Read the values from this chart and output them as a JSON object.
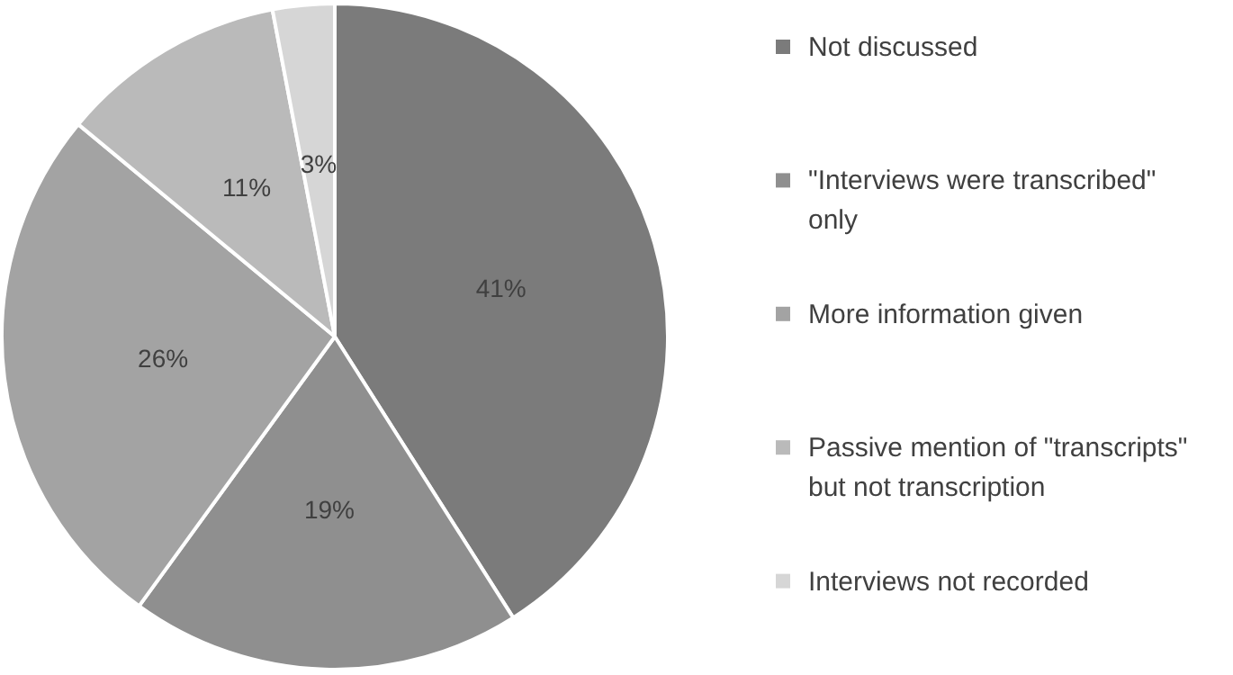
{
  "chart_data": {
    "type": "pie",
    "categories": [
      "Not discussed",
      "\"Interviews were transcribed\" only",
      "More information given",
      "Passive mention of \"transcripts\" but not transcription",
      "Interviews not recorded"
    ],
    "values": [
      41,
      19,
      26,
      11,
      3
    ],
    "colors": [
      "#7b7b7b",
      "#8f8f8f",
      "#a3a3a3",
      "#bababa",
      "#d6d6d6"
    ],
    "value_labels": [
      "41%",
      "19%",
      "26%",
      "11%",
      "3%"
    ],
    "legend": "right"
  }
}
